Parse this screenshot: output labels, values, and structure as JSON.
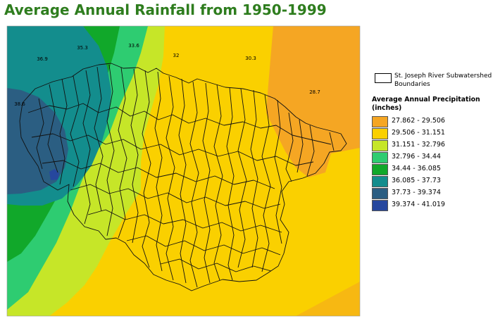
{
  "title": "Average Annual Rainfall from 1950-1999",
  "map": {
    "value_labels": [
      "36.9",
      "35.3",
      "33.6",
      "32",
      "30.3",
      "28.7",
      "38.6"
    ],
    "colors": {
      "c1": "#f5a623",
      "c2": "#fad000",
      "c3": "#c6e628",
      "c4": "#2ecc71",
      "c5": "#11a82a",
      "c6": "#138d8d",
      "c7": "#2b5e82",
      "c8": "#26479e"
    }
  },
  "legend": {
    "boundary_label": "St. Joseph River Subwatershed Boundaries",
    "title": "Average Annual Precipitation (inches)",
    "items": [
      {
        "range": "27.862 - 29.506",
        "color": "#f5a623"
      },
      {
        "range": "29.506 - 31.151",
        "color": "#fad000"
      },
      {
        "range": "31.151 - 32.796",
        "color": "#c6e628"
      },
      {
        "range": "32.796 - 34.44",
        "color": "#2ecc71"
      },
      {
        "range": "34.44 - 36.085",
        "color": "#11a82a"
      },
      {
        "range": "36.085 - 37.73",
        "color": "#138d8d"
      },
      {
        "range": "37.73 - 39.374",
        "color": "#2b5e82"
      },
      {
        "range": "39.374 - 41.019",
        "color": "#26479e"
      }
    ]
  }
}
